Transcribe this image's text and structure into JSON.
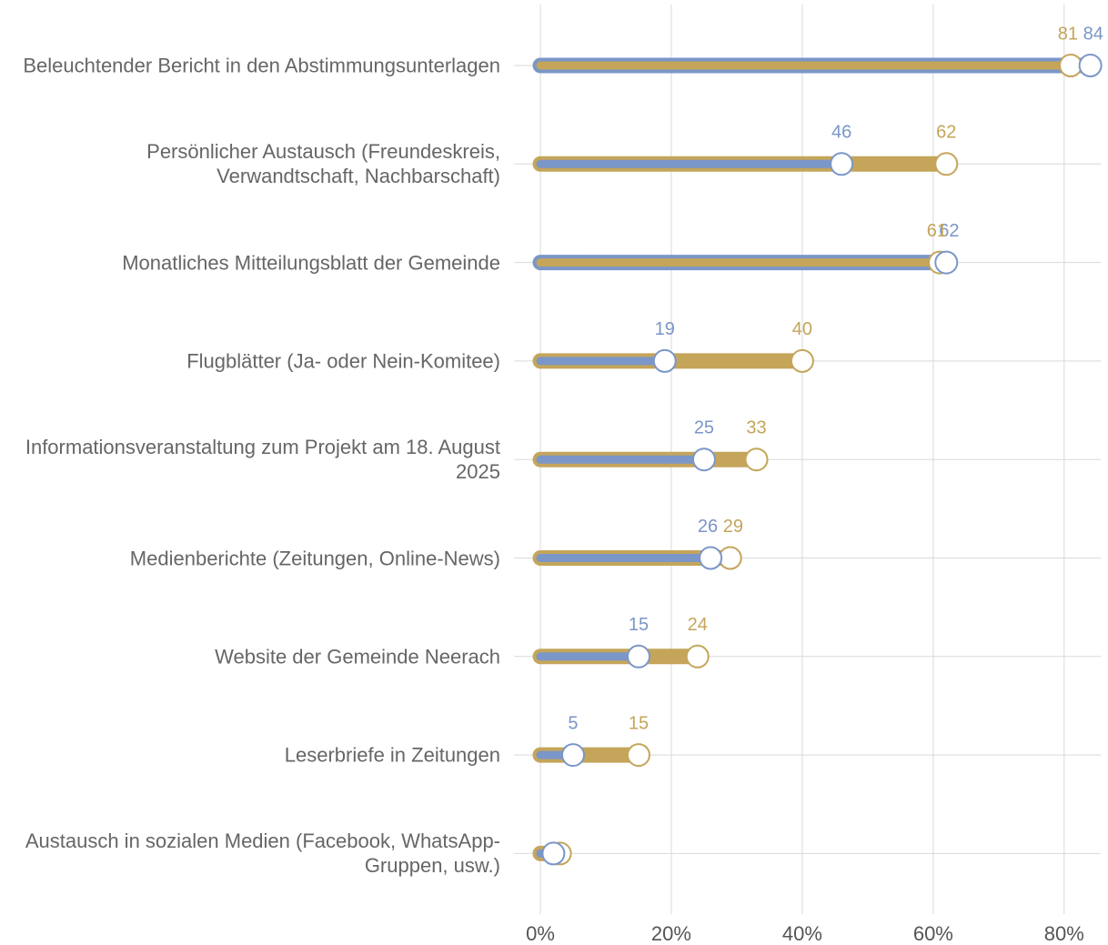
{
  "chart_data": {
    "type": "dumbbell",
    "categories": [
      "Beleuchtender Bericht in den Abstimmungsunterlagen",
      "Persönlicher Austausch (Freundeskreis, Verwandtschaft, Nachbarschaft)",
      "Monatliches Mitteilungsblatt der Gemeinde",
      "Flugblätter (Ja- oder Nein-Komitee)",
      "Informationsveranstaltung zum Projekt am 18. August 2025",
      "Medienberichte (Zeitungen, Online-News)",
      "Website der Gemeinde Neerach",
      "Leserbriefe in Zeitungen",
      "Austausch in sozialen Medien (Facebook, WhatsApp-Gruppen, usw.)"
    ],
    "series": [
      {
        "color": "#7b96c8",
        "values": [
          84,
          46,
          62,
          19,
          25,
          26,
          15,
          5,
          2
        ],
        "value_labels": [
          "84",
          "46",
          "62",
          "19",
          "25",
          "26",
          "15",
          "5",
          null
        ]
      },
      {
        "color": "#c4a55a",
        "values": [
          81,
          62,
          61,
          40,
          33,
          29,
          24,
          15,
          3
        ],
        "value_labels": [
          "81",
          "62",
          "61",
          "40",
          "33",
          "29",
          "24",
          "15",
          null
        ]
      }
    ],
    "xlim": [
      0,
      86
    ],
    "xticks": [
      {
        "value": 0,
        "label": "0%"
      },
      {
        "value": 20,
        "label": "20%"
      },
      {
        "value": 40,
        "label": "40%"
      },
      {
        "value": 60,
        "label": "60%"
      },
      {
        "value": 80,
        "label": "80%"
      }
    ],
    "grid": true
  }
}
